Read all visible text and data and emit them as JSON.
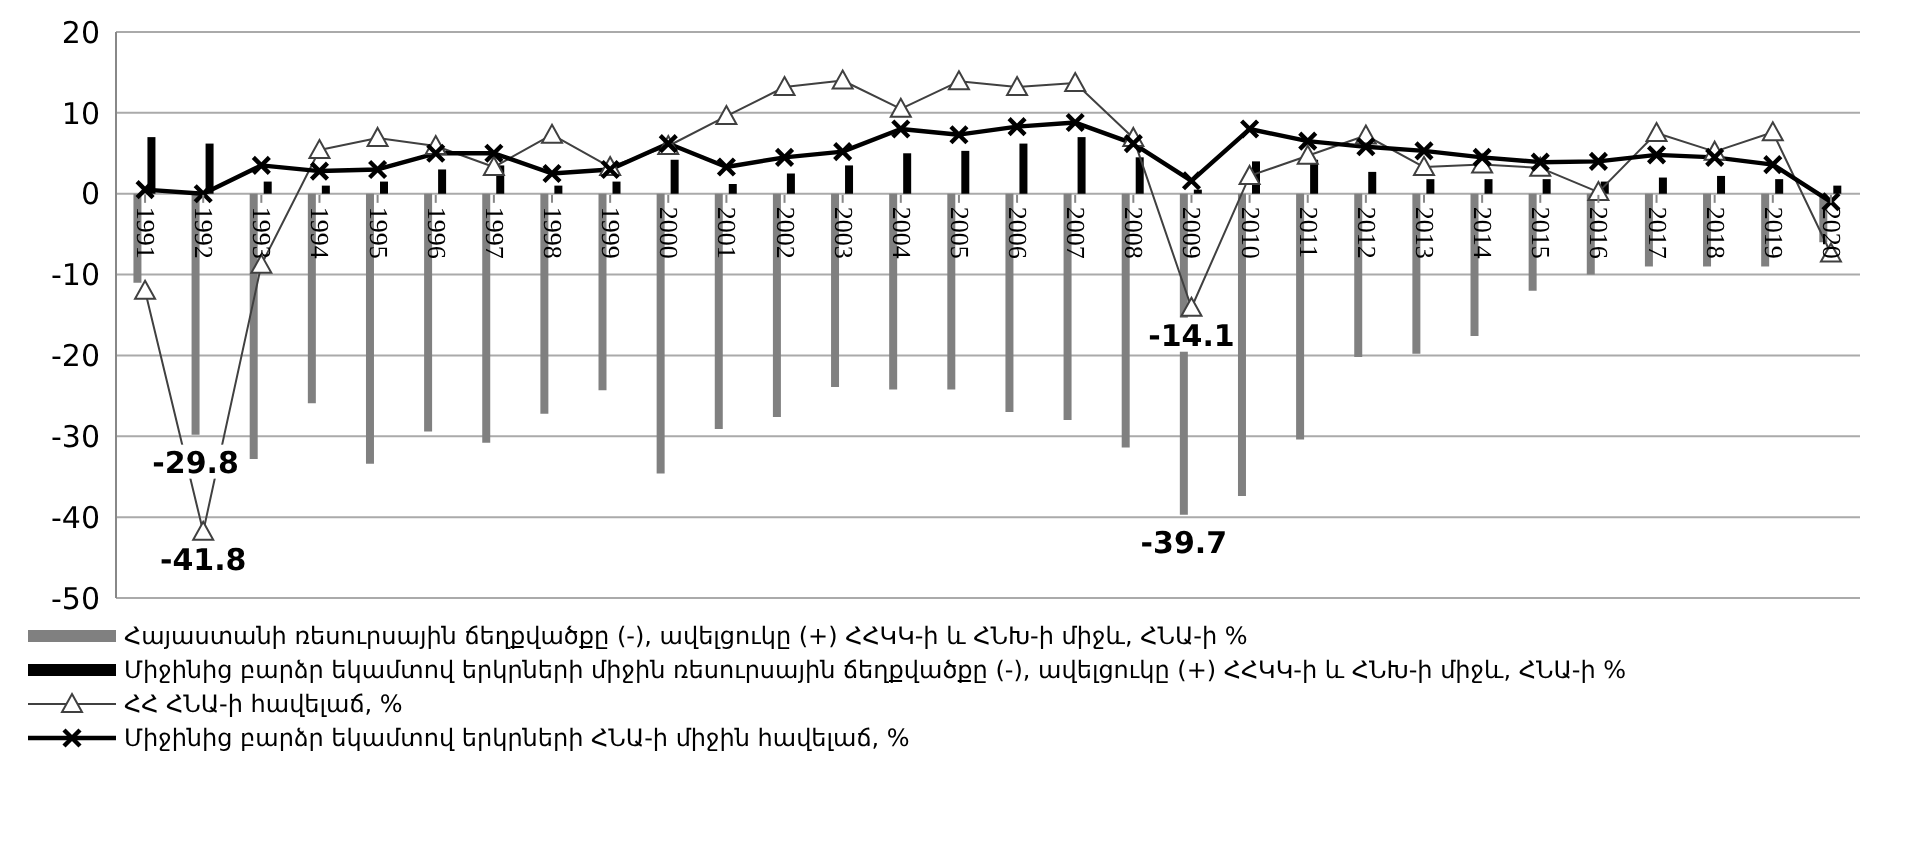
{
  "chart_data": {
    "type": "bar",
    "categories": [
      "1991",
      "1992",
      "1993",
      "1994",
      "1995",
      "1996",
      "1997",
      "1998",
      "1999",
      "2000",
      "2001",
      "2002",
      "2003",
      "2004",
      "2005",
      "2006",
      "2007",
      "2008",
      "2009",
      "2010",
      "2011",
      "2012",
      "2013",
      "2014",
      "2015",
      "2016",
      "2017",
      "2018",
      "2019",
      "2020"
    ],
    "series": [
      {
        "name": "Հայաստանի ռեսուրսային ճեղքվածքը (-), ավելցուկը (+) ՀՀԿԿ-ի և ՀՆԽ-ի միջև, ՀՆԱ-ի %",
        "color": "#808080",
        "values": [
          -11,
          -29.8,
          -32.8,
          -25.9,
          -33.4,
          -29.4,
          -30.8,
          -27.2,
          -24.3,
          -34.6,
          -29.1,
          -27.6,
          -23.9,
          -24.2,
          -24.2,
          -27,
          -28,
          -31.4,
          -39.7,
          -37.4,
          -30.4,
          -20.2,
          -19.8,
          -17.6,
          -12,
          -10,
          -9,
          -9,
          -9,
          -6
        ],
        "value_labels": [
          null,
          "-29.8",
          null,
          null,
          null,
          null,
          null,
          null,
          null,
          null,
          null,
          null,
          null,
          null,
          null,
          null,
          null,
          null,
          "-39.7",
          null,
          null,
          null,
          null,
          null,
          null,
          null,
          null,
          null,
          null,
          null
        ]
      },
      {
        "name": "Միջինից բարձր եկամտով երկրների միջին ռեսուրսային ճեղքվածքը (-), ավելցուկը (+) ՀՀԿԿ-ի և ՀՆԽ-ի միջև, ՀՆԱ-ի %",
        "color": "#000000",
        "values": [
          7,
          6.2,
          1.5,
          1,
          1.5,
          3,
          3.5,
          1,
          1.5,
          4.2,
          1.2,
          2.5,
          3.5,
          5,
          5.3,
          6.2,
          7,
          4.5,
          0.5,
          4,
          4.2,
          2.7,
          1.8,
          1.8,
          1.8,
          1.5,
          2,
          2.2,
          1.8,
          1
        ]
      },
      {
        "name": "ՀՀ ՀՆԱ-ի հավելաճ, %",
        "type": "line",
        "marker": "triangle",
        "color": "#404040",
        "values": [
          -12,
          -41.8,
          -8.8,
          5.4,
          6.9,
          5.9,
          3.3,
          7.3,
          3.3,
          5.9,
          9.6,
          13.2,
          14,
          10.5,
          13.9,
          13.2,
          13.7,
          6.9,
          -14.1,
          2.2,
          4.7,
          7.2,
          3.3,
          3.6,
          3.2,
          0.2,
          7.5,
          5.2,
          7.6,
          -7.4
        ],
        "value_labels": [
          null,
          "-41.8",
          null,
          null,
          null,
          null,
          null,
          null,
          null,
          null,
          null,
          null,
          null,
          null,
          null,
          null,
          null,
          null,
          "-14.1",
          null,
          null,
          null,
          null,
          null,
          null,
          null,
          null,
          null,
          null,
          null
        ]
      },
      {
        "name": "Միջինից բարձր եկամտով երկրների ՀՆԱ-ի միջին հավելաճ, %",
        "type": "line",
        "marker": "cross",
        "color": "#000000",
        "values": [
          0.5,
          0,
          3.5,
          2.8,
          3,
          5,
          5,
          2.5,
          3,
          6.2,
          3.3,
          4.5,
          5.2,
          8,
          7.3,
          8.3,
          8.8,
          6.2,
          1.6,
          8,
          6.5,
          5.8,
          5.3,
          4.5,
          3.9,
          4,
          4.8,
          4.5,
          3.6,
          -1
        ]
      }
    ],
    "ylim": [
      -50,
      20
    ],
    "yticks": [
      -50,
      -40,
      -30,
      -20,
      -10,
      0,
      10,
      20
    ],
    "grid": "y",
    "legend": "bottom"
  }
}
